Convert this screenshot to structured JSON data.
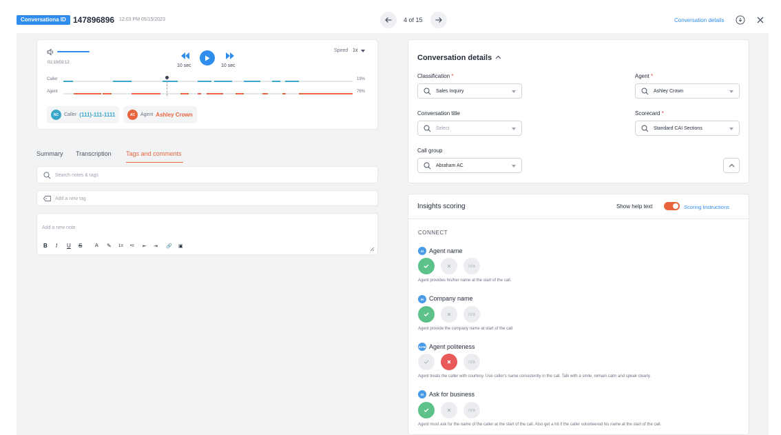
{
  "header": {
    "badge": "Conversationa ID",
    "id": "147896896",
    "timestamp": "12:03 PM 05/15/2023",
    "pager": "4 of 15",
    "details_link": "Conversation details"
  },
  "player": {
    "time": "01:10/03:12",
    "rewind_label": "10 sec",
    "forward_label": "10 sec",
    "speed_label": "Speed",
    "speed_value": "1x",
    "progress": 0.36,
    "tracks": [
      {
        "label": "Caller",
        "percent": "19%",
        "color": "#3aa6c9"
      },
      {
        "label": "Agent",
        "percent": "76%",
        "color": "#e8643c"
      }
    ],
    "chips": [
      {
        "initials": "NC",
        "role": "Caller",
        "value": "(111)-111-1111",
        "color": "#3aa6c9"
      },
      {
        "initials": "AC",
        "role": "Agent",
        "value": "Ashley Crown",
        "color": "#e8643c"
      }
    ]
  },
  "tabs": [
    "Summary",
    "Transcription",
    "Tags and comments"
  ],
  "left_panel": {
    "search_placeholder": "Search notes & tags",
    "tag_placeholder": "Add a new tag",
    "note_placeholder": "Add a new note",
    "toolbar": [
      "B",
      "I",
      "U",
      "S",
      "A",
      "✎",
      "1≡",
      "•≡",
      "⇤",
      "⇥",
      "🔗",
      "▣"
    ]
  },
  "details": {
    "title": "Conversation details",
    "fields": {
      "classification": {
        "label": "Classification",
        "required": "*",
        "value": "Sales Inquiry"
      },
      "agent": {
        "label": "Agent",
        "required": "*",
        "value": "Ashley Crown"
      },
      "title": {
        "label": "Conversation title",
        "placeholder": "Select"
      },
      "scorecard": {
        "label": "Scorecard",
        "required": "*",
        "value": "Standard CAI Sections"
      },
      "call_group": {
        "label": "Call group",
        "value": "Abraham AC"
      }
    }
  },
  "insights": {
    "title": "Insights scoring",
    "help_label": "Show help text",
    "help_on": true,
    "instructions_link": "Scoring  Instructions",
    "section": "CONNECT",
    "questions": [
      {
        "badge": "AI",
        "name": "Agent name",
        "selected": "yes",
        "desc": "Agent provides his/her name at the start of the call."
      },
      {
        "badge": "M",
        "name": "Company name",
        "selected": "yes",
        "desc": "Agent provide the company name at start of the call"
      },
      {
        "badge": "AI+M",
        "name": "Agent politeness",
        "selected": "no",
        "desc": "Agent treats the caller with courtesy. Use caller's name consistently in the call. Talk with a smile, remain calm and speak clearly."
      },
      {
        "badge": "M",
        "name": "Ask for business",
        "selected": "yes",
        "desc": "Agent must ask for the name of the caller at the start of the call. Also get a hit if the caller volunteered his name at the start of the call."
      }
    ],
    "na_label": "n/a"
  },
  "colors": {
    "accent": "#2f8ded",
    "orange": "#e8643c",
    "green": "#5cc28a",
    "red": "#e85a5a"
  }
}
